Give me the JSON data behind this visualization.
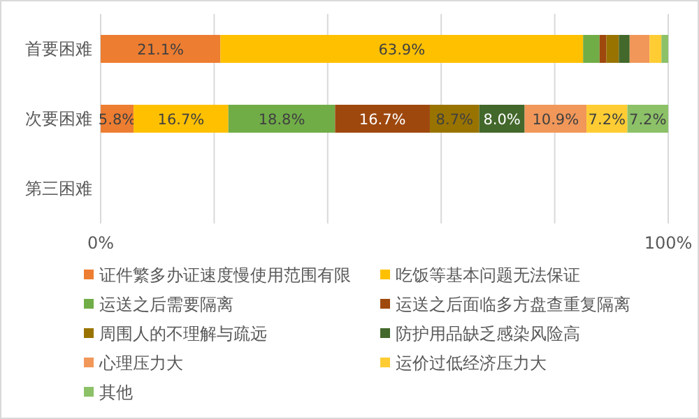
{
  "chart_data": {
    "type": "bar",
    "orientation": "horizontal",
    "stacked": true,
    "categories": [
      "首要困难",
      "次要困难",
      "第三困难"
    ],
    "xlim": [
      0,
      100
    ],
    "xticks": [
      {
        "value": 0,
        "label": "0%"
      },
      {
        "value": 20,
        "label": null
      },
      {
        "value": 40,
        "label": null
      },
      {
        "value": 60,
        "label": null
      },
      {
        "value": 80,
        "label": null
      },
      {
        "value": 100,
        "label": "100%"
      }
    ],
    "grid": "x",
    "legend": "bottom",
    "series": [
      {
        "name": "证件繁多办证速度慢使用范围有限",
        "color": "#ed7d31",
        "values": [
          21.1,
          5.8,
          null
        ],
        "value_labels": [
          "21.1%",
          "5.8%",
          null
        ]
      },
      {
        "name": "吃饭等基本问题无法保证",
        "color": "#ffc000",
        "values": [
          63.9,
          16.7,
          null
        ],
        "value_labels": [
          "63.9%",
          "16.7%",
          null
        ]
      },
      {
        "name": "运送之后需要隔离",
        "color": "#70ad47",
        "values": [
          2.9,
          18.8,
          null
        ],
        "value_labels": [
          null,
          "18.8%",
          null
        ]
      },
      {
        "name": "运送之后面临多方盘查重复隔离",
        "color": "#9e480e",
        "values": [
          1.2,
          16.7,
          null
        ],
        "value_labels": [
          null,
          "16.7%",
          null
        ]
      },
      {
        "name": "周围人的不理解与疏远",
        "color": "#997300",
        "values": [
          2.2,
          8.7,
          null
        ],
        "value_labels": [
          null,
          "8.7%",
          null
        ]
      },
      {
        "name": "防护用品缺乏感染风险高",
        "color": "#43682b",
        "values": [
          1.9,
          8.0,
          null
        ],
        "value_labels": [
          null,
          "8.0%",
          null
        ]
      },
      {
        "name": "心理压力大",
        "color": "#f1975a",
        "values": [
          3.5,
          10.9,
          null
        ],
        "value_labels": [
          null,
          "10.9%",
          null
        ]
      },
      {
        "name": "运价过低经济压力大",
        "color": "#ffcd33",
        "values": [
          2.1,
          7.2,
          null
        ],
        "value_labels": [
          null,
          "7.2%",
          null
        ]
      },
      {
        "name": "其他",
        "color": "#8cc168",
        "values": [
          1.2,
          7.2,
          null
        ],
        "value_labels": [
          null,
          "7.2%",
          null
        ]
      }
    ]
  }
}
